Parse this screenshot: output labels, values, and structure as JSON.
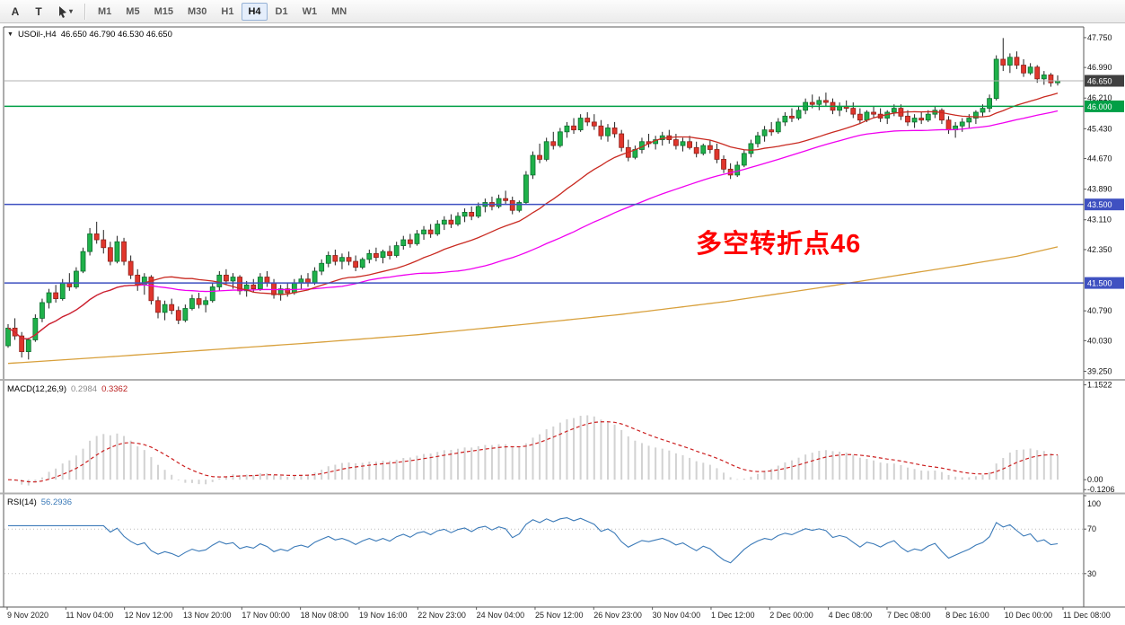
{
  "toolbar": {
    "left_buttons": [
      {
        "label": "A",
        "name": "arrow-tool"
      },
      {
        "label": "T",
        "name": "text-tool"
      }
    ],
    "drawing_dropdown_caret": "▾",
    "timeframes": [
      "M1",
      "M5",
      "M15",
      "M30",
      "H1",
      "H4",
      "D1",
      "W1",
      "MN"
    ],
    "active_timeframe": "H4"
  },
  "chart": {
    "dropdown_icon": "▼",
    "symbol_label": "USOil-,H4",
    "ohlc_line": "46.650 46.790 46.530 46.650",
    "annotation": {
      "text": "多空转折点46",
      "color": "#fe0000"
    }
  },
  "indicators": {
    "macd": {
      "label": "MACD(12,26,9)",
      "main_value": "0.2984",
      "signal_value": "0.3362",
      "axis_labels": [
        "1.1522",
        "0.00",
        "-0.1206"
      ],
      "axis_values": [
        1.1522,
        0,
        -0.1206
      ],
      "range": [
        -0.14,
        1.18
      ],
      "fast": 12,
      "slow": 26,
      "signal": 9
    },
    "rsi": {
      "label": "RSI(14)",
      "value": "56.2936",
      "axis_labels": [
        "100",
        "70",
        "30"
      ],
      "axis_values": [
        100,
        70,
        30
      ],
      "levels": [
        70,
        30
      ],
      "range": [
        0,
        100
      ],
      "period": 14
    }
  },
  "colors": {
    "up_fill": "#1fb14a",
    "up_stroke": "#0c6e2e",
    "down_fill": "#e0362c",
    "down_stroke": "#8f201a",
    "wick": "#222222",
    "macd_hist": "#d2d2d2",
    "macd_signal": "#cc2020",
    "rsi_line": "#3b7ab8",
    "rsi_level": "#bbbbbb",
    "frame": "#5a5a5a",
    "separator": "#b0b0b0",
    "bid_line": "#b0b0b0",
    "bid_badge": "#404040",
    "axis_text": "#111111",
    "x_text": "#222222"
  },
  "chart_data": {
    "type": "candlestick",
    "symbol": "USOil",
    "period": "H4",
    "title": "USOil-,H4 46.650 46.790 46.530 46.650",
    "price_range": [
      39.1,
      48.0
    ],
    "price_ticks": [
      47.75,
      46.99,
      46.21,
      45.43,
      44.67,
      43.89,
      43.11,
      42.35,
      40.79,
      40.03,
      39.25
    ],
    "price_tick_labels": [
      "47.750",
      "46.990",
      "46.210",
      "45.430",
      "44.670",
      "43.890",
      "43.110",
      "42.350",
      "40.790",
      "40.030",
      "39.250"
    ],
    "levels": [
      {
        "value": 46.0,
        "label": "46.000",
        "color": "#009f46",
        "name": "hline-46-000"
      },
      {
        "value": 43.5,
        "label": "43.500",
        "color": "#3f51c1",
        "name": "hline-43-500"
      },
      {
        "value": 41.5,
        "label": "41.500",
        "color": "#3f51c1",
        "name": "hline-41-500"
      }
    ],
    "current_price": {
      "value": 46.65,
      "label": "46.650"
    },
    "x_labels": [
      "9 Nov 2020",
      "11 Nov 04:00",
      "12 Nov 12:00",
      "13 Nov 20:00",
      "17 Nov 00:00",
      "18 Nov 08:00",
      "19 Nov 16:00",
      "22 Nov 23:00",
      "24 Nov 04:00",
      "25 Nov 12:00",
      "26 Nov 23:00",
      "30 Nov 04:00",
      "1 Dec 12:00",
      "2 Dec 00:00",
      "4 Dec 08:00",
      "7 Dec 08:00",
      "8 Dec 16:00",
      "10 Dec 00:00",
      "11 Dec 08:00"
    ],
    "moving_averages": [
      {
        "name": "ma-fast",
        "type": "sma",
        "period": 20,
        "color": "#c92a21"
      },
      {
        "name": "ma-mid",
        "type": "sma",
        "period": 50,
        "color": "#f000f0"
      },
      {
        "name": "ma-slow",
        "type": "keypoints",
        "color": "#d8a03c",
        "points": [
          [
            0,
            39.45
          ],
          [
            15,
            39.62
          ],
          [
            30,
            39.8
          ],
          [
            45,
            39.98
          ],
          [
            60,
            40.18
          ],
          [
            76,
            40.45
          ],
          [
            90,
            40.7
          ],
          [
            105,
            41.02
          ],
          [
            118,
            41.35
          ],
          [
            130,
            41.68
          ],
          [
            140,
            41.95
          ],
          [
            148,
            42.18
          ],
          [
            154,
            42.42
          ]
        ]
      }
    ],
    "ohlc": [
      [
        39.9,
        40.45,
        39.85,
        40.35
      ],
      [
        40.35,
        40.6,
        40.05,
        40.15
      ],
      [
        40.15,
        40.25,
        39.6,
        39.75
      ],
      [
        39.75,
        40.1,
        39.55,
        40.05
      ],
      [
        40.05,
        40.7,
        40.0,
        40.6
      ],
      [
        40.6,
        41.1,
        40.5,
        41.0
      ],
      [
        41.0,
        41.35,
        40.85,
        41.25
      ],
      [
        41.25,
        41.45,
        41.0,
        41.1
      ],
      [
        41.1,
        41.6,
        41.05,
        41.5
      ],
      [
        41.5,
        41.75,
        41.3,
        41.4
      ],
      [
        41.4,
        41.9,
        41.35,
        41.8
      ],
      [
        41.8,
        42.4,
        41.75,
        42.3
      ],
      [
        42.3,
        42.9,
        42.2,
        42.75
      ],
      [
        42.75,
        43.06,
        42.5,
        42.6
      ],
      [
        42.6,
        42.85,
        42.25,
        42.4
      ],
      [
        42.4,
        42.55,
        41.95,
        42.05
      ],
      [
        42.05,
        42.7,
        42.0,
        42.55
      ],
      [
        42.55,
        42.65,
        41.95,
        42.05
      ],
      [
        42.05,
        42.2,
        41.6,
        41.7
      ],
      [
        41.7,
        41.85,
        41.3,
        41.45
      ],
      [
        41.45,
        41.75,
        41.2,
        41.65
      ],
      [
        41.65,
        41.7,
        40.95,
        41.05
      ],
      [
        41.05,
        41.15,
        40.6,
        40.75
      ],
      [
        40.75,
        41.05,
        40.55,
        40.95
      ],
      [
        40.95,
        41.1,
        40.7,
        40.8
      ],
      [
        40.8,
        40.9,
        40.45,
        40.55
      ],
      [
        40.55,
        40.95,
        40.5,
        40.85
      ],
      [
        40.85,
        41.2,
        40.8,
        41.1
      ],
      [
        41.1,
        41.25,
        40.85,
        40.95
      ],
      [
        40.95,
        41.15,
        40.75,
        41.05
      ],
      [
        41.05,
        41.5,
        41.0,
        41.4
      ],
      [
        41.4,
        41.8,
        41.3,
        41.7
      ],
      [
        41.7,
        41.85,
        41.45,
        41.55
      ],
      [
        41.55,
        41.75,
        41.35,
        41.65
      ],
      [
        41.65,
        41.7,
        41.2,
        41.3
      ],
      [
        41.3,
        41.55,
        41.15,
        41.45
      ],
      [
        41.45,
        41.6,
        41.25,
        41.35
      ],
      [
        41.35,
        41.75,
        41.3,
        41.65
      ],
      [
        41.65,
        41.8,
        41.4,
        41.5
      ],
      [
        41.5,
        41.6,
        41.1,
        41.2
      ],
      [
        41.2,
        41.45,
        41.05,
        41.35
      ],
      [
        41.35,
        41.5,
        41.15,
        41.25
      ],
      [
        41.25,
        41.6,
        41.2,
        41.5
      ],
      [
        41.5,
        41.7,
        41.35,
        41.6
      ],
      [
        41.6,
        41.75,
        41.4,
        41.5
      ],
      [
        41.5,
        41.9,
        41.45,
        41.8
      ],
      [
        41.8,
        42.1,
        41.7,
        42.0
      ],
      [
        42.0,
        42.3,
        41.9,
        42.2
      ],
      [
        42.2,
        42.35,
        41.95,
        42.05
      ],
      [
        42.05,
        42.25,
        41.85,
        42.15
      ],
      [
        42.15,
        42.3,
        41.95,
        42.05
      ],
      [
        42.05,
        42.2,
        41.8,
        41.9
      ],
      [
        41.9,
        42.15,
        41.85,
        42.1
      ],
      [
        42.1,
        42.35,
        42.0,
        42.25
      ],
      [
        42.25,
        42.4,
        42.05,
        42.15
      ],
      [
        42.15,
        42.35,
        42.0,
        42.3
      ],
      [
        42.3,
        42.45,
        42.1,
        42.2
      ],
      [
        42.2,
        42.55,
        42.15,
        42.45
      ],
      [
        42.45,
        42.7,
        42.35,
        42.6
      ],
      [
        42.6,
        42.75,
        42.4,
        42.5
      ],
      [
        42.5,
        42.85,
        42.45,
        42.75
      ],
      [
        42.75,
        42.95,
        42.6,
        42.85
      ],
      [
        42.85,
        43.0,
        42.65,
        42.75
      ],
      [
        42.75,
        43.1,
        42.7,
        43.0
      ],
      [
        43.0,
        43.2,
        42.85,
        43.1
      ],
      [
        43.1,
        43.25,
        42.9,
        43.0
      ],
      [
        43.0,
        43.3,
        42.95,
        43.2
      ],
      [
        43.2,
        43.4,
        43.05,
        43.3
      ],
      [
        43.3,
        43.45,
        43.1,
        43.2
      ],
      [
        43.2,
        43.55,
        43.15,
        43.45
      ],
      [
        43.45,
        43.65,
        43.3,
        43.55
      ],
      [
        43.55,
        43.7,
        43.35,
        43.45
      ],
      [
        43.45,
        43.75,
        43.4,
        43.65
      ],
      [
        43.65,
        43.85,
        43.5,
        43.6
      ],
      [
        43.6,
        43.7,
        43.25,
        43.35
      ],
      [
        43.35,
        43.6,
        43.3,
        43.55
      ],
      [
        43.55,
        44.35,
        43.5,
        44.25
      ],
      [
        44.25,
        44.85,
        44.15,
        44.75
      ],
      [
        44.75,
        45.05,
        44.55,
        44.65
      ],
      [
        44.65,
        45.2,
        44.6,
        45.1
      ],
      [
        45.1,
        45.35,
        44.9,
        45.0
      ],
      [
        45.0,
        45.45,
        44.95,
        45.35
      ],
      [
        45.35,
        45.6,
        45.2,
        45.5
      ],
      [
        45.5,
        45.7,
        45.3,
        45.4
      ],
      [
        45.4,
        45.8,
        45.35,
        45.7
      ],
      [
        45.7,
        45.85,
        45.5,
        45.6
      ],
      [
        45.6,
        45.8,
        45.4,
        45.5
      ],
      [
        45.5,
        45.65,
        45.15,
        45.25
      ],
      [
        45.25,
        45.55,
        45.1,
        45.45
      ],
      [
        45.45,
        45.6,
        45.2,
        45.3
      ],
      [
        45.3,
        45.4,
        44.85,
        44.95
      ],
      [
        44.95,
        45.15,
        44.6,
        44.7
      ],
      [
        44.7,
        45.0,
        44.65,
        44.9
      ],
      [
        44.9,
        45.2,
        44.8,
        45.1
      ],
      [
        45.1,
        45.3,
        44.95,
        45.05
      ],
      [
        45.05,
        45.25,
        44.9,
        45.15
      ],
      [
        45.15,
        45.35,
        45.0,
        45.25
      ],
      [
        45.25,
        45.4,
        45.05,
        45.15
      ],
      [
        45.15,
        45.3,
        44.9,
        45.0
      ],
      [
        45.0,
        45.2,
        44.85,
        45.1
      ],
      [
        45.1,
        45.25,
        44.9,
        44.95
      ],
      [
        44.95,
        45.1,
        44.7,
        44.8
      ],
      [
        44.8,
        45.05,
        44.75,
        45.0
      ],
      [
        45.0,
        45.15,
        44.8,
        44.9
      ],
      [
        44.9,
        45.05,
        44.55,
        44.65
      ],
      [
        44.65,
        44.75,
        44.3,
        44.4
      ],
      [
        44.4,
        44.55,
        44.15,
        44.25
      ],
      [
        44.25,
        44.6,
        44.2,
        44.5
      ],
      [
        44.5,
        44.9,
        44.45,
        44.8
      ],
      [
        44.8,
        45.15,
        44.7,
        45.05
      ],
      [
        45.05,
        45.35,
        44.95,
        45.25
      ],
      [
        45.25,
        45.5,
        45.1,
        45.4
      ],
      [
        45.4,
        45.6,
        45.25,
        45.35
      ],
      [
        45.35,
        45.7,
        45.3,
        45.6
      ],
      [
        45.6,
        45.85,
        45.5,
        45.75
      ],
      [
        45.75,
        45.95,
        45.6,
        45.7
      ],
      [
        45.7,
        46.0,
        45.65,
        45.9
      ],
      [
        45.9,
        46.2,
        45.8,
        46.1
      ],
      [
        46.1,
        46.3,
        45.95,
        46.05
      ],
      [
        46.05,
        46.25,
        45.9,
        46.15
      ],
      [
        46.15,
        46.35,
        46.0,
        46.1
      ],
      [
        46.1,
        46.2,
        45.8,
        45.9
      ],
      [
        45.9,
        46.1,
        45.75,
        46.0
      ],
      [
        46.0,
        46.15,
        45.85,
        45.95
      ],
      [
        45.95,
        46.1,
        45.7,
        45.8
      ],
      [
        45.8,
        45.95,
        45.55,
        45.65
      ],
      [
        45.65,
        45.9,
        45.6,
        45.85
      ],
      [
        45.85,
        46.0,
        45.7,
        45.8
      ],
      [
        45.8,
        45.95,
        45.6,
        45.7
      ],
      [
        45.7,
        45.9,
        45.55,
        45.85
      ],
      [
        45.85,
        46.05,
        45.75,
        45.95
      ],
      [
        45.95,
        46.05,
        45.65,
        45.75
      ],
      [
        45.75,
        45.9,
        45.5,
        45.6
      ],
      [
        45.6,
        45.8,
        45.45,
        45.7
      ],
      [
        45.7,
        45.85,
        45.55,
        45.65
      ],
      [
        45.65,
        45.9,
        45.6,
        45.8
      ],
      [
        45.8,
        46.0,
        45.7,
        45.9
      ],
      [
        45.9,
        45.95,
        45.55,
        45.65
      ],
      [
        45.65,
        45.75,
        45.3,
        45.4
      ],
      [
        45.4,
        45.6,
        45.2,
        45.5
      ],
      [
        45.5,
        45.7,
        45.35,
        45.6
      ],
      [
        45.6,
        45.8,
        45.45,
        45.7
      ],
      [
        45.7,
        45.9,
        45.55,
        45.85
      ],
      [
        45.85,
        46.05,
        45.75,
        45.95
      ],
      [
        45.95,
        46.3,
        45.85,
        46.2
      ],
      [
        46.2,
        47.3,
        46.15,
        47.2
      ],
      [
        47.2,
        47.74,
        46.9,
        47.05
      ],
      [
        47.05,
        47.35,
        46.85,
        47.25
      ],
      [
        47.25,
        47.4,
        46.95,
        47.05
      ],
      [
        47.05,
        47.2,
        46.75,
        46.85
      ],
      [
        46.85,
        47.1,
        46.8,
        47.0
      ],
      [
        47.0,
        47.05,
        46.6,
        46.7
      ],
      [
        46.7,
        46.9,
        46.55,
        46.8
      ],
      [
        46.8,
        46.85,
        46.5,
        46.6
      ],
      [
        46.6,
        46.79,
        46.53,
        46.65
      ]
    ]
  }
}
